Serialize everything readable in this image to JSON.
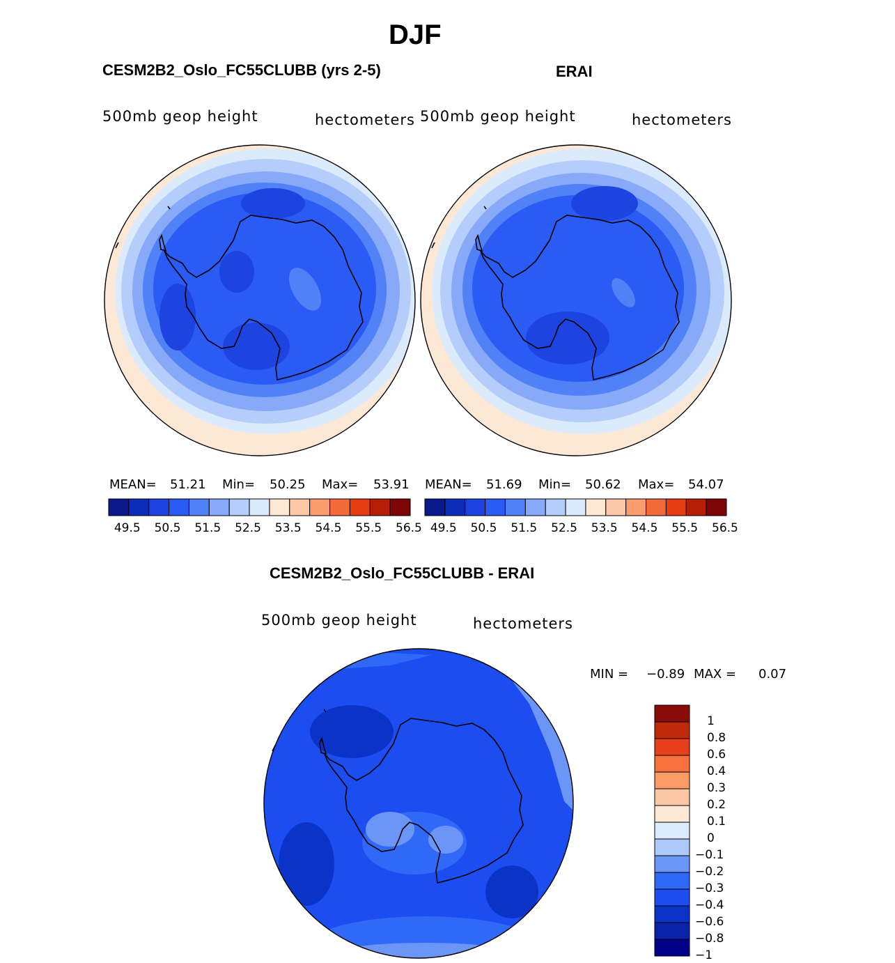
{
  "figure": {
    "season": "DJF",
    "variable": "500mb geop height",
    "units": "hectometers",
    "colors": {
      "abs_scale": [
        "#0a1a8c",
        "#0c2db8",
        "#1d44e0",
        "#2a5cf5",
        "#5181f6",
        "#87a9f8",
        "#b5cdfa",
        "#dcebfc",
        "#fde8d6",
        "#fcc9a8",
        "#fa9c6e",
        "#f36a3a",
        "#e63d12",
        "#b61e05",
        "#7d0505"
      ],
      "diff_scale": [
        "#00008a",
        "#0a22a8",
        "#0c33c8",
        "#1c4df0",
        "#3068f8",
        "#6c95f8",
        "#adc9fb",
        "#dcecfc",
        "#fde8d6",
        "#fcc7a5",
        "#fb9b68",
        "#f7703d",
        "#e8401b",
        "#c02a0a",
        "#8a0a0a"
      ],
      "coast": "#000000"
    }
  },
  "panels": {
    "model": {
      "title": "CESM2B2_Oslo_FC55CLUBB (yrs 2-5)",
      "mean_label": "MEAN=",
      "mean": "51.21",
      "min_label": "Min=",
      "min": "50.25",
      "max_label": "Max=",
      "max": "53.91"
    },
    "obs": {
      "title": "ERAI",
      "mean_label": "MEAN=",
      "mean": "51.69",
      "min_label": "Min=",
      "min": "50.62",
      "max_label": "Max=",
      "max": "54.07"
    },
    "diff": {
      "title": "CESM2B2_Oslo_FC55CLUBB - ERAI",
      "min_label": "MIN =",
      "min": "−0.89",
      "max_label": "MAX =",
      "max": "0.07"
    }
  },
  "abs_colorbar_ticks": [
    "49.5",
    "50.5",
    "51.5",
    "52.5",
    "53.5",
    "54.5",
    "55.5",
    "56.5"
  ],
  "diff_colorbar_ticks": [
    "1",
    "0.8",
    "0.6",
    "0.4",
    "0.3",
    "0.2",
    "0.1",
    "0",
    "−0.1",
    "−0.2",
    "−0.3",
    "−0.4",
    "−0.6",
    "−0.8",
    "−1"
  ]
}
